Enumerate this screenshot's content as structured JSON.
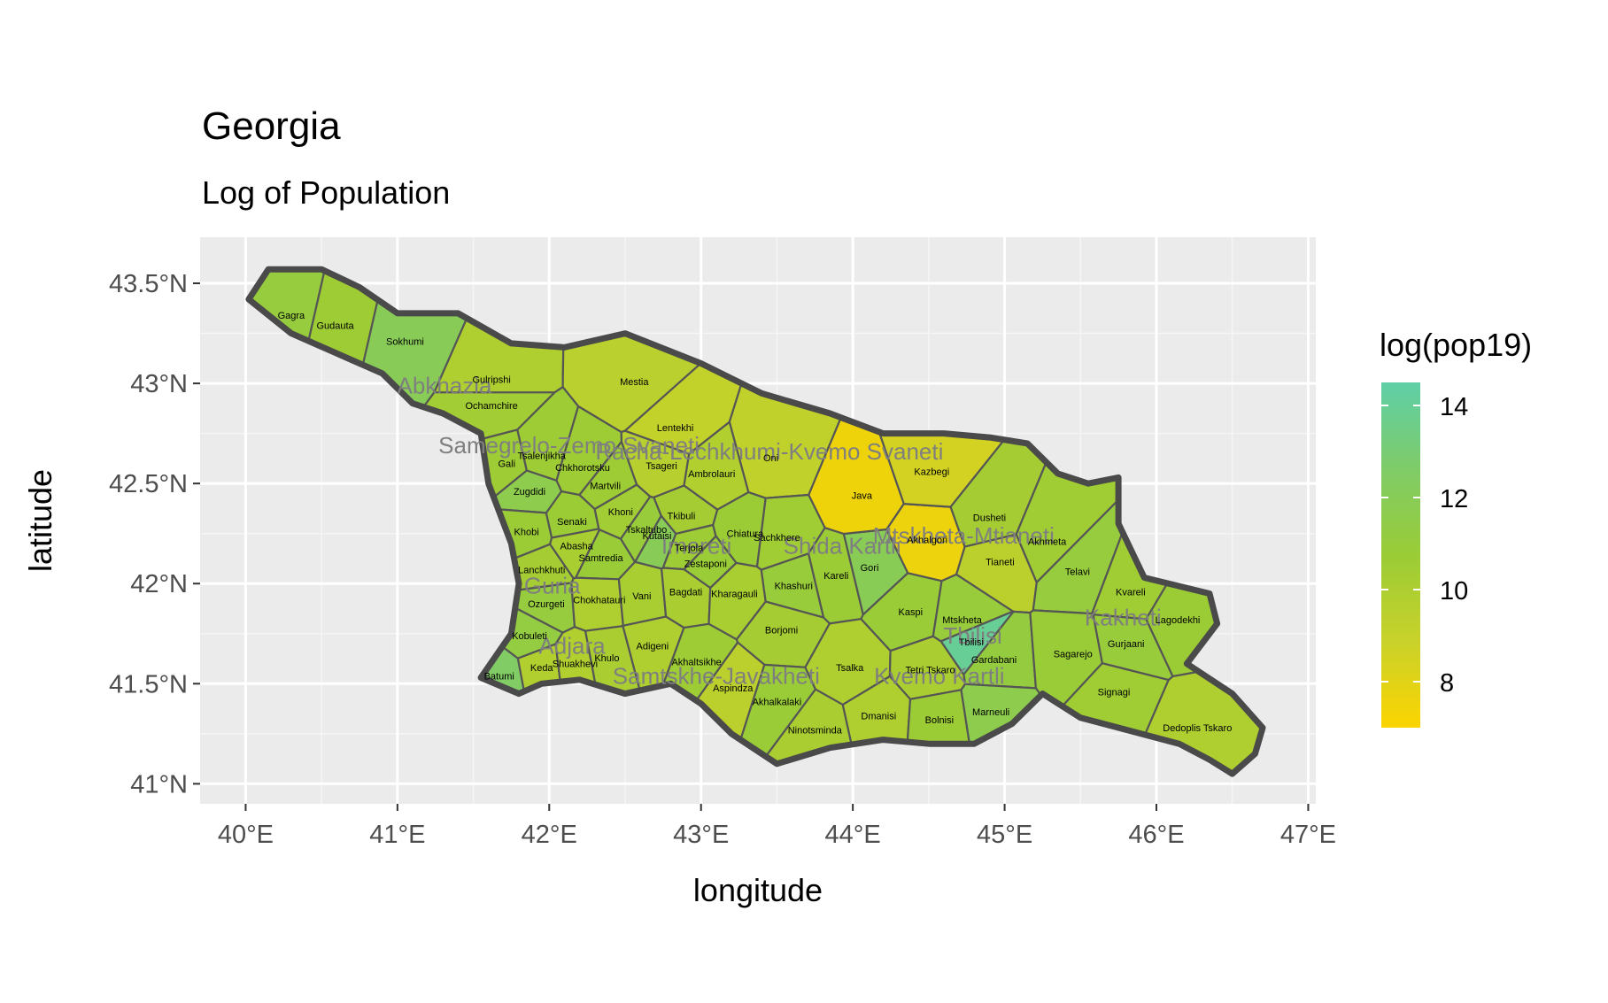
{
  "chart_data": {
    "type": "choropleth_map",
    "title": "Georgia",
    "subtitle": "Log of Population",
    "xlabel": "longitude",
    "ylabel": "latitude",
    "xlim": [
      39.7,
      47.05
    ],
    "ylim": [
      40.9,
      43.73
    ],
    "x_ticks": [
      {
        "value": 40,
        "label": "40°E"
      },
      {
        "value": 41,
        "label": "41°E"
      },
      {
        "value": 42,
        "label": "42°E"
      },
      {
        "value": 43,
        "label": "43°E"
      },
      {
        "value": 44,
        "label": "44°E"
      },
      {
        "value": 45,
        "label": "45°E"
      },
      {
        "value": 46,
        "label": "46°E"
      },
      {
        "value": 47,
        "label": "47°E"
      }
    ],
    "y_ticks": [
      {
        "value": 41,
        "label": "41°N"
      },
      {
        "value": 41.5,
        "label": "41.5°N"
      },
      {
        "value": 42,
        "label": "42°N"
      },
      {
        "value": 42.5,
        "label": "42.5°N"
      },
      {
        "value": 43,
        "label": "43°N"
      },
      {
        "value": 43.5,
        "label": "43.5°N"
      }
    ],
    "grid": true,
    "panel_background": "#ebebeb",
    "legend": {
      "title": "log(pop19)",
      "position": "right",
      "range": [
        7,
        14.5
      ],
      "ticks": [
        {
          "value": 8,
          "label": "8"
        },
        {
          "value": 10,
          "label": "10"
        },
        {
          "value": 12,
          "label": "12"
        },
        {
          "value": 14,
          "label": "14"
        }
      ],
      "colors": [
        "#fcd400",
        "#c9d22a",
        "#9acc36",
        "#7fcc68",
        "#5ecfa7"
      ]
    },
    "outline": [
      [
        40.02,
        43.42
      ],
      [
        40.15,
        43.57
      ],
      [
        40.5,
        43.57
      ],
      [
        40.75,
        43.48
      ],
      [
        41.0,
        43.35
      ],
      [
        41.4,
        43.35
      ],
      [
        41.75,
        43.2
      ],
      [
        42.1,
        43.18
      ],
      [
        42.5,
        43.25
      ],
      [
        43.0,
        43.1
      ],
      [
        43.4,
        42.95
      ],
      [
        43.85,
        42.85
      ],
      [
        44.2,
        42.75
      ],
      [
        44.6,
        42.75
      ],
      [
        44.9,
        42.73
      ],
      [
        45.15,
        42.7
      ],
      [
        45.35,
        42.55
      ],
      [
        45.55,
        42.5
      ],
      [
        45.75,
        42.53
      ],
      [
        45.75,
        42.3
      ],
      [
        45.92,
        42.03
      ],
      [
        46.35,
        41.95
      ],
      [
        46.4,
        41.8
      ],
      [
        46.2,
        41.6
      ],
      [
        46.5,
        41.45
      ],
      [
        46.7,
        41.28
      ],
      [
        46.65,
        41.15
      ],
      [
        46.5,
        41.05
      ],
      [
        46.35,
        41.12
      ],
      [
        46.15,
        41.2
      ],
      [
        45.5,
        41.33
      ],
      [
        45.25,
        41.45
      ],
      [
        45.05,
        41.3
      ],
      [
        44.8,
        41.2
      ],
      [
        44.5,
        41.2
      ],
      [
        44.2,
        41.22
      ],
      [
        43.85,
        41.18
      ],
      [
        43.5,
        41.1
      ],
      [
        43.2,
        41.25
      ],
      [
        43.0,
        41.4
      ],
      [
        42.8,
        41.5
      ],
      [
        42.5,
        41.45
      ],
      [
        42.2,
        41.52
      ],
      [
        41.95,
        41.5
      ],
      [
        41.8,
        41.45
      ],
      [
        41.55,
        41.53
      ],
      [
        41.75,
        41.75
      ],
      [
        41.8,
        42.0
      ],
      [
        41.75,
        42.2
      ],
      [
        41.6,
        42.5
      ],
      [
        41.55,
        42.75
      ],
      [
        41.3,
        42.85
      ],
      [
        41.1,
        42.9
      ],
      [
        40.9,
        43.05
      ],
      [
        40.6,
        43.15
      ],
      [
        40.3,
        43.25
      ],
      [
        40.02,
        43.42
      ]
    ],
    "districts": [
      {
        "name": "Gagra",
        "lon": 40.3,
        "lat": 43.34,
        "value": 11.0
      },
      {
        "name": "Gudauta",
        "lon": 40.59,
        "lat": 43.29,
        "value": 10.6
      },
      {
        "name": "Sokhumi",
        "lon": 41.05,
        "lat": 43.21,
        "value": 12.0
      },
      {
        "name": "Gulripshi",
        "lon": 41.62,
        "lat": 43.02,
        "value": 9.9
      },
      {
        "name": "Ochamchire",
        "lon": 41.62,
        "lat": 42.89,
        "value": 10.4
      },
      {
        "name": "Gali",
        "lon": 41.72,
        "lat": 42.6,
        "value": 10.6
      },
      {
        "name": "Mestia",
        "lon": 42.56,
        "lat": 43.01,
        "value": 9.5
      },
      {
        "name": "Lentekhi",
        "lon": 42.83,
        "lat": 42.78,
        "value": 9.1
      },
      {
        "name": "Oni",
        "lon": 43.46,
        "lat": 42.63,
        "value": 9.2
      },
      {
        "name": "Tsageri",
        "lon": 42.74,
        "lat": 42.59,
        "value": 9.6
      },
      {
        "name": "Ambrolauri",
        "lon": 43.07,
        "lat": 42.55,
        "value": 9.8
      },
      {
        "name": "Tsalenjikha",
        "lon": 41.95,
        "lat": 42.64,
        "value": 10.6
      },
      {
        "name": "Chkhorotsku",
        "lon": 42.22,
        "lat": 42.58,
        "value": 10.6
      },
      {
        "name": "Martvili",
        "lon": 42.37,
        "lat": 42.49,
        "value": 10.6
      },
      {
        "name": "Zugdidi",
        "lon": 41.87,
        "lat": 42.46,
        "value": 11.6
      },
      {
        "name": "Khobi",
        "lon": 41.85,
        "lat": 42.26,
        "value": 10.7
      },
      {
        "name": "Senaki",
        "lon": 42.15,
        "lat": 42.31,
        "value": 10.7
      },
      {
        "name": "Abasha",
        "lon": 42.18,
        "lat": 42.19,
        "value": 10.2
      },
      {
        "name": "Khoni",
        "lon": 42.47,
        "lat": 42.36,
        "value": 10.4
      },
      {
        "name": "Tkibuli",
        "lon": 42.87,
        "lat": 42.34,
        "value": 10.3
      },
      {
        "name": "Tskaltubo",
        "lon": 42.64,
        "lat": 42.27,
        "value": 10.9
      },
      {
        "name": "Kutaisi",
        "lon": 42.71,
        "lat": 42.24,
        "value": 12.0
      },
      {
        "name": "Terjola",
        "lon": 42.92,
        "lat": 42.18,
        "value": 10.6
      },
      {
        "name": "Samtredia",
        "lon": 42.34,
        "lat": 42.13,
        "value": 10.8
      },
      {
        "name": "Chiatura",
        "lon": 43.29,
        "lat": 42.25,
        "value": 10.7
      },
      {
        "name": "Sachkhere",
        "lon": 43.5,
        "lat": 42.23,
        "value": 10.5
      },
      {
        "name": "Zestaponi",
        "lon": 43.03,
        "lat": 42.1,
        "value": 10.8
      },
      {
        "name": "Lanchkhuti",
        "lon": 41.95,
        "lat": 42.07,
        "value": 10.3
      },
      {
        "name": "Ozurgeti",
        "lon": 41.98,
        "lat": 41.9,
        "value": 11.0
      },
      {
        "name": "Chokhatauri",
        "lon": 42.33,
        "lat": 41.92,
        "value": 9.9
      },
      {
        "name": "Vani",
        "lon": 42.61,
        "lat": 41.94,
        "value": 10.2
      },
      {
        "name": "Bagdati",
        "lon": 42.9,
        "lat": 41.96,
        "value": 10.1
      },
      {
        "name": "Kharagauli",
        "lon": 43.22,
        "lat": 41.95,
        "value": 10.2
      },
      {
        "name": "Khashuri",
        "lon": 43.61,
        "lat": 41.99,
        "value": 10.9
      },
      {
        "name": "Kareli",
        "lon": 43.89,
        "lat": 42.04,
        "value": 10.7
      },
      {
        "name": "Gori",
        "lon": 44.11,
        "lat": 42.08,
        "value": 11.9
      },
      {
        "name": "Kaspi",
        "lon": 44.38,
        "lat": 41.86,
        "value": 10.8
      },
      {
        "name": "Java",
        "lon": 44.06,
        "lat": 42.44,
        "value": 7.5
      },
      {
        "name": "Akhalgori",
        "lon": 44.49,
        "lat": 42.22,
        "value": 7.6
      },
      {
        "name": "Kazbegi",
        "lon": 44.52,
        "lat": 42.56,
        "value": 8.5
      },
      {
        "name": "Dusheti",
        "lon": 44.9,
        "lat": 42.33,
        "value": 10.3
      },
      {
        "name": "Tianeti",
        "lon": 44.97,
        "lat": 42.11,
        "value": 9.4
      },
      {
        "name": "Akhmeta",
        "lon": 45.28,
        "lat": 42.21,
        "value": 10.5
      },
      {
        "name": "Mtskheta",
        "lon": 44.72,
        "lat": 41.82,
        "value": 10.9
      },
      {
        "name": "Tbilisi",
        "lon": 44.78,
        "lat": 41.71,
        "value": 14.0
      },
      {
        "name": "Gardabani",
        "lon": 44.93,
        "lat": 41.62,
        "value": 11.1
      },
      {
        "name": "Telavi",
        "lon": 45.48,
        "lat": 42.06,
        "value": 11.0
      },
      {
        "name": "Kvareli",
        "lon": 45.83,
        "lat": 41.96,
        "value": 10.5
      },
      {
        "name": "Lagodekhi",
        "lon": 46.14,
        "lat": 41.82,
        "value": 10.7
      },
      {
        "name": "Gurjaani",
        "lon": 45.8,
        "lat": 41.7,
        "value": 10.9
      },
      {
        "name": "Sagarejo",
        "lon": 45.45,
        "lat": 41.65,
        "value": 10.8
      },
      {
        "name": "Signagi",
        "lon": 45.72,
        "lat": 41.46,
        "value": 10.5
      },
      {
        "name": "Dedoplis Tskaro",
        "lon": 46.27,
        "lat": 41.28,
        "value": 9.9
      },
      {
        "name": "Kobuleti",
        "lon": 41.87,
        "lat": 41.74,
        "value": 11.2
      },
      {
        "name": "Batumi",
        "lon": 41.67,
        "lat": 41.54,
        "value": 12.5
      },
      {
        "name": "Keda",
        "lon": 41.95,
        "lat": 41.58,
        "value": 9.8
      },
      {
        "name": "Shuakhevi",
        "lon": 42.17,
        "lat": 41.6,
        "value": 9.8
      },
      {
        "name": "Khulo",
        "lon": 42.38,
        "lat": 41.63,
        "value": 10.1
      },
      {
        "name": "Adigeni",
        "lon": 42.68,
        "lat": 41.69,
        "value": 9.9
      },
      {
        "name": "Akhaltsikhe",
        "lon": 42.97,
        "lat": 41.61,
        "value": 10.6
      },
      {
        "name": "Borjomi",
        "lon": 43.53,
        "lat": 41.77,
        "value": 10.3
      },
      {
        "name": "Aspindza",
        "lon": 43.21,
        "lat": 41.48,
        "value": 9.4
      },
      {
        "name": "Akhalkalaki",
        "lon": 43.5,
        "lat": 41.41,
        "value": 10.8
      },
      {
        "name": "Ninotsminda",
        "lon": 43.75,
        "lat": 41.27,
        "value": 10.1
      },
      {
        "name": "Tsalka",
        "lon": 43.98,
        "lat": 41.58,
        "value": 9.9
      },
      {
        "name": "Tetri Tskaro",
        "lon": 44.51,
        "lat": 41.57,
        "value": 10.1
      },
      {
        "name": "Dmanisi",
        "lon": 44.17,
        "lat": 41.34,
        "value": 9.9
      },
      {
        "name": "Bolnisi",
        "lon": 44.57,
        "lat": 41.32,
        "value": 10.7
      },
      {
        "name": "Marneuli",
        "lon": 44.91,
        "lat": 41.36,
        "value": 11.6
      }
    ],
    "regions": [
      {
        "name": "Abkhazia",
        "lon": 41.31,
        "lat": 42.95
      },
      {
        "name": "Samegrelo-Zemo Svaneti",
        "lon": 42.13,
        "lat": 42.65
      },
      {
        "name": "Racha-Lechkhumi-Kvemo Svaneti",
        "lon": 43.45,
        "lat": 42.62
      },
      {
        "name": "Imereti",
        "lon": 42.97,
        "lat": 42.15
      },
      {
        "name": "Shida Kartli",
        "lon": 43.93,
        "lat": 42.15
      },
      {
        "name": "Mtskheta-Mtianeti",
        "lon": 44.73,
        "lat": 42.2
      },
      {
        "name": "Guria",
        "lon": 42.02,
        "lat": 41.95
      },
      {
        "name": "Adjara",
        "lon": 42.15,
        "lat": 41.65
      },
      {
        "name": "Samtskhe-Javakheti",
        "lon": 43.1,
        "lat": 41.5
      },
      {
        "name": "Kvemo Kartli",
        "lon": 44.57,
        "lat": 41.5
      },
      {
        "name": "Tbilisi",
        "lon": 44.79,
        "lat": 41.7
      },
      {
        "name": "Kakheti",
        "lon": 45.78,
        "lat": 41.79
      }
    ]
  }
}
